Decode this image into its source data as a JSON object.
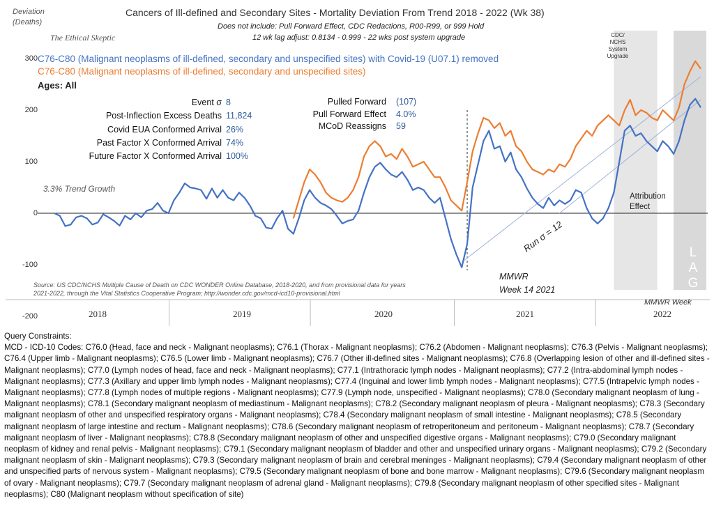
{
  "header": {
    "y_unit_label_line1": "Deviation",
    "y_unit_label_line2": "(Deaths)",
    "title": "Cancers of Ill-defined  and Secondary Sites - Mortality Deviation From Trend  2018 - 2022 (Wk 38)",
    "subtitle1": "Does not include: Pull Forward Effect,  CDC Redactions, R00-R99, or 999 Hold",
    "subtitle2": "12 wk lag adjust: 0.8134 - 0.999 - 22 wks post system upgrade",
    "brand": "The Ethical Skeptic"
  },
  "legend": {
    "blue": "C76-C80 (Malignant neoplasms of ill-defined, secondary and unspecified sites) with Covid-19 (U07.1) removed",
    "orange": "C76-C80 (Malignant neoplasms of ill-defined, secondary and unspecified sites)",
    "ages": "Ages: All"
  },
  "stats": [
    {
      "label": "Event σ",
      "value": "8"
    },
    {
      "label": "Post-Inflection Excess Deaths",
      "value": "11,824"
    },
    {
      "label": "Covid EUA Conformed Arrival",
      "value": "26%"
    },
    {
      "label": "Past Factor X Conformed Arrival",
      "value": "74%"
    },
    {
      "label": "Future Factor X Conformed Arrival",
      "value": "100%"
    }
  ],
  "stats2": [
    {
      "label": "Pulled Forward",
      "value": "(107)"
    },
    {
      "label": "Pull Forward Effect",
      "value": "4.0%"
    },
    {
      "label": "MCoD Reassigns",
      "value": "59"
    }
  ],
  "annotations": {
    "trend_growth": "3.3% Trend Growth",
    "run_sigma": "Run σ = 12",
    "mmwr_line1": "MMWR",
    "mmwr_line2": "Week 14 2021",
    "attribution_line1": "Attribution",
    "attribution_line2": "Effect",
    "upgrade_line1": "CDC/",
    "upgrade_line2": "NCHS",
    "upgrade_line3": "System",
    "upgrade_line4": "Upgrade",
    "lag": "L A G",
    "mmwr_week": "MMWR Week",
    "source_line1": "Source: US CDC/NCHS Multiple Cause of Death on CDC WONDER Online Database, 2018-2020, and from provisional data for years",
    "source_line2": "2021-2022, through the Vital Statistics Cooperative Program; http://wonder.cdc.gov/mcd-icd10-provisional.html"
  },
  "colors": {
    "blue": "#4472c4",
    "orange": "#ed7d31",
    "trend": "#9fb4d8",
    "upgrade_band": "#e6e6e6",
    "lag_band": "#d9d9d9"
  },
  "chart_data": {
    "type": "line",
    "x_unit": "MMWR week index (week 1 of 2018 = 0)",
    "ylim": [
      -200,
      320
    ],
    "yticks": [
      -200,
      -100,
      0,
      100,
      200,
      300
    ],
    "categories": [
      "2018",
      "2019",
      "2020",
      "2021",
      "2022"
    ],
    "series": [
      {
        "name": "C76-C80 (Malignant neoplasms of ill-defined, secondary and unspecified sites) with Covid-19 (U07.1) removed",
        "color": "#4472c4",
        "points": [
          [
            0,
            0
          ],
          [
            2,
            -5
          ],
          [
            4,
            -25
          ],
          [
            6,
            -22
          ],
          [
            8,
            -8
          ],
          [
            10,
            -5
          ],
          [
            12,
            -10
          ],
          [
            14,
            -22
          ],
          [
            16,
            -18
          ],
          [
            18,
            -2
          ],
          [
            20,
            -8
          ],
          [
            22,
            -15
          ],
          [
            24,
            -24
          ],
          [
            26,
            -5
          ],
          [
            28,
            -12
          ],
          [
            30,
            0
          ],
          [
            32,
            -8
          ],
          [
            34,
            5
          ],
          [
            36,
            8
          ],
          [
            38,
            20
          ],
          [
            40,
            5
          ],
          [
            42,
            0
          ],
          [
            44,
            25
          ],
          [
            46,
            40
          ],
          [
            48,
            58
          ],
          [
            50,
            50
          ],
          [
            52,
            48
          ],
          [
            54,
            45
          ],
          [
            56,
            28
          ],
          [
            58,
            48
          ],
          [
            60,
            30
          ],
          [
            62,
            45
          ],
          [
            64,
            30
          ],
          [
            66,
            25
          ],
          [
            68,
            40
          ],
          [
            70,
            30
          ],
          [
            72,
            15
          ],
          [
            74,
            -5
          ],
          [
            76,
            -10
          ],
          [
            78,
            -28
          ],
          [
            80,
            -30
          ],
          [
            82,
            -10
          ],
          [
            84,
            5
          ],
          [
            86,
            -30
          ],
          [
            88,
            -40
          ],
          [
            90,
            -10
          ],
          [
            92,
            25
          ],
          [
            94,
            45
          ],
          [
            96,
            30
          ],
          [
            98,
            20
          ],
          [
            100,
            15
          ],
          [
            102,
            8
          ],
          [
            104,
            -5
          ],
          [
            106,
            -20
          ],
          [
            108,
            -15
          ],
          [
            110,
            -12
          ],
          [
            112,
            5
          ],
          [
            114,
            40
          ],
          [
            116,
            70
          ],
          [
            118,
            90
          ],
          [
            120,
            98
          ],
          [
            122,
            85
          ],
          [
            124,
            75
          ],
          [
            126,
            70
          ],
          [
            128,
            80
          ],
          [
            130,
            65
          ],
          [
            132,
            45
          ],
          [
            134,
            50
          ],
          [
            136,
            45
          ],
          [
            138,
            30
          ],
          [
            140,
            20
          ],
          [
            142,
            30
          ],
          [
            144,
            -10
          ],
          [
            146,
            -50
          ],
          [
            148,
            -80
          ],
          [
            150,
            -105
          ],
          [
            152,
            -60
          ],
          [
            154,
            50
          ],
          [
            156,
            95
          ],
          [
            158,
            140
          ],
          [
            160,
            160
          ],
          [
            162,
            125
          ],
          [
            164,
            130
          ],
          [
            166,
            100
          ],
          [
            168,
            118
          ],
          [
            170,
            85
          ],
          [
            172,
            70
          ],
          [
            174,
            48
          ],
          [
            176,
            30
          ],
          [
            178,
            18
          ],
          [
            180,
            10
          ],
          [
            182,
            30
          ],
          [
            184,
            15
          ],
          [
            186,
            25
          ],
          [
            188,
            18
          ],
          [
            190,
            25
          ],
          [
            192,
            45
          ],
          [
            194,
            40
          ],
          [
            196,
            10
          ],
          [
            198,
            -10
          ],
          [
            200,
            -20
          ],
          [
            202,
            -10
          ],
          [
            204,
            10
          ],
          [
            206,
            40
          ],
          [
            208,
            100
          ],
          [
            210,
            160
          ],
          [
            212,
            170
          ],
          [
            214,
            150
          ],
          [
            216,
            155
          ],
          [
            218,
            140
          ],
          [
            220,
            130
          ],
          [
            222,
            120
          ],
          [
            224,
            140
          ],
          [
            226,
            130
          ],
          [
            228,
            115
          ],
          [
            230,
            140
          ],
          [
            232,
            180
          ],
          [
            234,
            210
          ],
          [
            236,
            222
          ],
          [
            238,
            205
          ]
        ]
      },
      {
        "name": "C76-C80 (Malignant neoplasms of ill-defined, secondary and unspecified sites)",
        "color": "#ed7d31",
        "start_index": 88,
        "points": [
          [
            88,
            -10
          ],
          [
            90,
            25
          ],
          [
            92,
            60
          ],
          [
            94,
            85
          ],
          [
            96,
            75
          ],
          [
            98,
            60
          ],
          [
            100,
            40
          ],
          [
            102,
            30
          ],
          [
            104,
            25
          ],
          [
            106,
            22
          ],
          [
            108,
            30
          ],
          [
            110,
            45
          ],
          [
            112,
            70
          ],
          [
            114,
            110
          ],
          [
            116,
            130
          ],
          [
            118,
            140
          ],
          [
            120,
            130
          ],
          [
            122,
            110
          ],
          [
            124,
            115
          ],
          [
            126,
            105
          ],
          [
            128,
            125
          ],
          [
            130,
            110
          ],
          [
            132,
            90
          ],
          [
            134,
            95
          ],
          [
            136,
            100
          ],
          [
            138,
            85
          ],
          [
            140,
            70
          ],
          [
            142,
            70
          ],
          [
            144,
            50
          ],
          [
            146,
            25
          ],
          [
            148,
            15
          ],
          [
            150,
            5
          ],
          [
            152,
            60
          ],
          [
            154,
            120
          ],
          [
            156,
            155
          ],
          [
            158,
            185
          ],
          [
            160,
            180
          ],
          [
            162,
            165
          ],
          [
            164,
            175
          ],
          [
            166,
            150
          ],
          [
            168,
            160
          ],
          [
            170,
            130
          ],
          [
            172,
            120
          ],
          [
            174,
            100
          ],
          [
            176,
            85
          ],
          [
            178,
            80
          ],
          [
            180,
            75
          ],
          [
            182,
            85
          ],
          [
            184,
            80
          ],
          [
            186,
            95
          ],
          [
            188,
            90
          ],
          [
            190,
            105
          ],
          [
            192,
            130
          ],
          [
            194,
            145
          ],
          [
            196,
            160
          ],
          [
            198,
            150
          ],
          [
            200,
            170
          ],
          [
            202,
            180
          ],
          [
            204,
            190
          ],
          [
            206,
            180
          ],
          [
            208,
            170
          ],
          [
            210,
            200
          ],
          [
            212,
            220
          ],
          [
            214,
            190
          ],
          [
            216,
            200
          ],
          [
            218,
            195
          ],
          [
            220,
            185
          ],
          [
            222,
            180
          ],
          [
            224,
            200
          ],
          [
            226,
            190
          ],
          [
            228,
            180
          ],
          [
            230,
            205
          ],
          [
            232,
            250
          ],
          [
            234,
            275
          ],
          [
            236,
            295
          ],
          [
            238,
            280
          ]
        ]
      }
    ],
    "trend_line": {
      "x": [
        150,
        238
      ],
      "y": [
        -95,
        265
      ]
    },
    "baseline_trend": {
      "x": [
        186,
        238
      ],
      "y": [
        0,
        220
      ]
    },
    "event_marker_week": 152,
    "upgrade_band_weeks": [
      206,
      222
    ],
    "lag_band_weeks": [
      228,
      238
    ]
  },
  "query": {
    "title": "Query Constraints:",
    "text": "MCD - ICD-10 Codes: C76.0 (Head, face and neck - Malignant neoplasms); C76.1 (Thorax - Malignant neoplasms); C76.2 (Abdomen - Malignant neoplasms); C76.3 (Pelvis - Malignant neoplasms); C76.4 (Upper limb - Malignant neoplasms); C76.5 (Lower limb - Malignant neoplasms); C76.7 (Other ill-defined sites - Malignant neoplasms); C76.8 (Overlapping lesion of other and ill-defined sites - Malignant neoplasms); C77.0 (Lymph nodes of head, face and neck - Malignant neoplasms); C77.1 (Intrathoracic lymph nodes - Malignant neoplasms); C77.2 (Intra-abdominal lymph nodes - Malignant neoplasms); C77.3 (Axillary and upper limb lymph nodes - Malignant neoplasms); C77.4 (Inguinal and lower limb lymph nodes - Malignant neoplasms); C77.5 (Intrapelvic lymph nodes - Malignant neoplasms); C77.8 (Lymph nodes of multiple regions - Malignant neoplasms); C77.9 (Lymph node, unspecified - Malignant neoplasms); C78.0 (Secondary malignant neoplasm of lung - Malignant neoplasms); C78.1 (Secondary malignant neoplasm of mediastinum - Malignant neoplasms); C78.2 (Secondary malignant neoplasm of pleura - Malignant neoplasms); C78.3 (Secondary malignant neoplasm of other and unspecified respiratory organs - Malignant neoplasms); C78.4 (Secondary malignant neoplasm of small intestine - Malignant neoplasms); C78.5 (Secondary malignant neoplasm of large intestine and rectum - Malignant neoplasms); C78.6 (Secondary malignant neoplasm of retroperitoneum and peritoneum - Malignant neoplasms); C78.7 (Secondary malignant neoplasm of liver - Malignant neoplasms); C78.8 (Secondary malignant neoplasm of other and unspecified digestive organs - Malignant neoplasms); C79.0 (Secondary malignant neoplasm of kidney and renal pelvis - Malignant neoplasms); C79.1 (Secondary malignant neoplasm of bladder and other and unspecified urinary organs - Malignant neoplasms); C79.2 (Secondary malignant neoplasm of skin - Malignant neoplasms); C79.3 (Secondary malignant neoplasm of brain and cerebral meninges - Malignant neoplasms); C79.4 (Secondary malignant neoplasm of other and unspecified parts of nervous system - Malignant neoplasms); C79.5 (Secondary malignant neoplasm of bone and bone marrow - Malignant neoplasms); C79.6 (Secondary malignant neoplasm of ovary - Malignant neoplasms); C79.7 (Secondary malignant neoplasm of adrenal gland - Malignant neoplasms); C79.8 (Secondary malignant neoplasm of other specified sites - Malignant neoplasms); C80 (Malignant neoplasm without specification of site)"
  }
}
